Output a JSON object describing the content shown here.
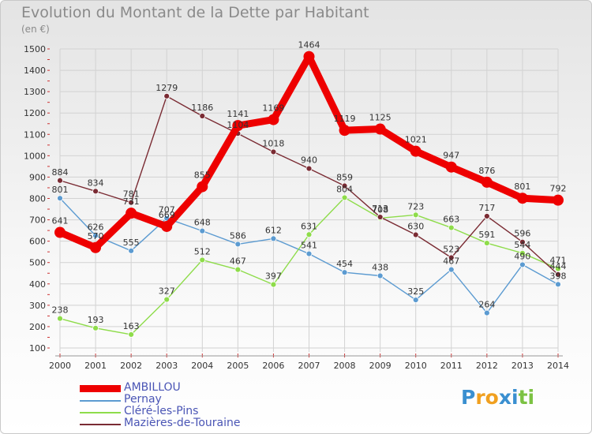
{
  "header": {
    "title": "Evolution du Montant de la Dette par Habitant",
    "unit": "(en €)"
  },
  "logo": {
    "text": "Proxiti",
    "letters": [
      "P",
      "r",
      "o",
      "x",
      "i",
      "t",
      "i"
    ],
    "colors": [
      "#3a8fd0",
      "#f0a020",
      "#f0a020",
      "#3a8fd0",
      "#3a8fd0",
      "#7cc243",
      "#7cc243"
    ]
  },
  "chart_data": {
    "type": "line",
    "title": "Evolution du Montant de la Dette par Habitant",
    "ylabel": "(en €)",
    "xlabel": "",
    "ylim": [
      100,
      1500
    ],
    "yticks": [
      100,
      200,
      300,
      400,
      500,
      600,
      700,
      800,
      900,
      1000,
      1100,
      1200,
      1300,
      1400,
      1500
    ],
    "grid": true,
    "legend_position": "bottom-left",
    "x": [
      "2000",
      "2001",
      "2002",
      "2003",
      "2004",
      "2005",
      "2006",
      "2007",
      "2008",
      "2009",
      "2010",
      "2011",
      "2012",
      "2013",
      "2014"
    ],
    "series": [
      {
        "name": "AMBILLOU",
        "color": "#ee0000",
        "values": [
          641,
          570,
          731,
          669,
          855,
          1141,
          1169,
          1464,
          1119,
          1125,
          1021,
          947,
          876,
          801,
          792
        ]
      },
      {
        "name": "Pernay",
        "color": "#5c9bd1",
        "values": [
          801,
          626,
          555,
          707,
          648,
          586,
          612,
          541,
          454,
          438,
          325,
          467,
          264,
          490,
          398
        ]
      },
      {
        "name": "Cléré-les-Pins",
        "color": "#8edc4a",
        "values": [
          238,
          193,
          163,
          327,
          512,
          467,
          397,
          631,
          804,
          708,
          723,
          663,
          591,
          544,
          471
        ]
      },
      {
        "name": "Mazières-de-Touraine",
        "color": "#7a2b33",
        "values": [
          884,
          834,
          781,
          1279,
          1186,
          1104,
          1018,
          940,
          859,
          713,
          630,
          523,
          717,
          596,
          444
        ]
      }
    ]
  }
}
